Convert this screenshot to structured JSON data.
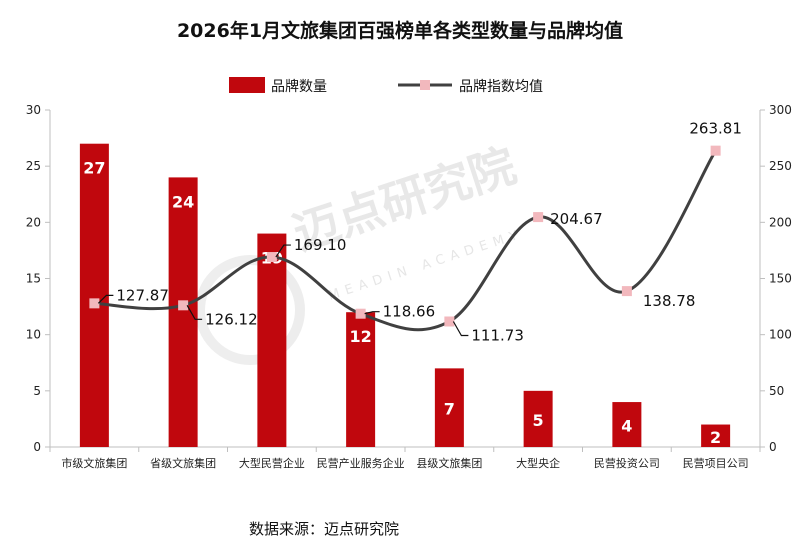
{
  "chart_data": {
    "type": "bar",
    "title": "2026年1月文旅集团百强榜单各类型数量与品牌均值",
    "categories": [
      "市级文旅集团",
      "省级文旅集团",
      "大型民营企业",
      "民营产业服务企业",
      "县级文旅集团",
      "大型央企",
      "民营投资公司",
      "民营项目公司"
    ],
    "series": [
      {
        "name": "品牌数量",
        "type": "bar",
        "axis": "left",
        "color": "#c0070d",
        "values": [
          27,
          24,
          19,
          12,
          7,
          5,
          4,
          2
        ]
      },
      {
        "name": "品牌指数均值",
        "type": "line",
        "axis": "right",
        "color": "#404040",
        "marker_color": "#f2b8bd",
        "values": [
          127.87,
          126.12,
          169.1,
          118.66,
          111.73,
          204.67,
          138.78,
          263.81
        ]
      }
    ],
    "y_left": {
      "min": 0,
      "max": 30,
      "ticks": [
        0,
        5,
        10,
        15,
        20,
        25,
        30
      ]
    },
    "y_right": {
      "min": 0,
      "max": 300,
      "ticks": [
        0,
        50,
        100,
        150,
        200,
        250,
        300
      ]
    },
    "line_labels": [
      "127.87",
      "126.12",
      "169.10",
      "118.66",
      "111.73",
      "204.67",
      "138.78",
      "263.81"
    ],
    "legend_position": "top-center",
    "grid": false
  },
  "source": "数据来源：迈点研究院",
  "watermark": {
    "cn": "迈点研究院",
    "en": "MEADIN ACADEMY"
  }
}
